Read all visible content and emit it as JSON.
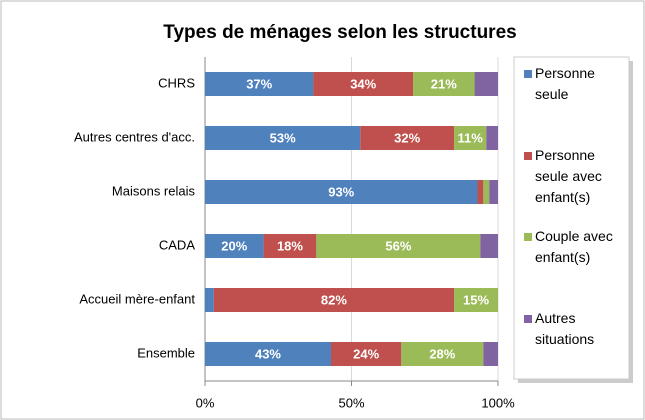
{
  "chart_data": {
    "type": "stacked-bar-horizontal",
    "title": "Types de ménages selon les structures",
    "categories": [
      "CHRS",
      "Autres centres d'acc.",
      "Maisons relais",
      "CADA",
      "Accueil mère-enfant",
      "Ensemble"
    ],
    "series": [
      {
        "name": "Personne seule",
        "color": "#4f81bd",
        "values": [
          37,
          53,
          93,
          20,
          3,
          43
        ],
        "value_labels": [
          "37%",
          "53%",
          "93%",
          "20%",
          null,
          "43%"
        ]
      },
      {
        "name": "Personne seule avec enfant(s)",
        "color": "#c0504d",
        "values": [
          34,
          32,
          2,
          18,
          82,
          24
        ],
        "value_labels": [
          "34%",
          "32%",
          null,
          "18%",
          "82%",
          "24%"
        ]
      },
      {
        "name": "Couple avec enfant(s)",
        "color": "#9bbb59",
        "values": [
          21,
          11,
          2,
          56,
          15,
          28
        ],
        "value_labels": [
          "21%",
          "11%",
          null,
          "56%",
          "15%",
          "28%"
        ]
      },
      {
        "name": "Autres situations",
        "color": "#8064a2",
        "values": [
          8,
          4,
          3,
          6,
          0,
          5
        ],
        "value_labels": [
          null,
          null,
          null,
          null,
          null,
          null
        ]
      }
    ],
    "xlim": [
      0,
      100
    ],
    "xticks": [
      {
        "value": 0,
        "label": "0%"
      },
      {
        "value": 50,
        "label": "50%"
      },
      {
        "value": 100,
        "label": "100%"
      }
    ],
    "grid": true,
    "legend": "right"
  }
}
